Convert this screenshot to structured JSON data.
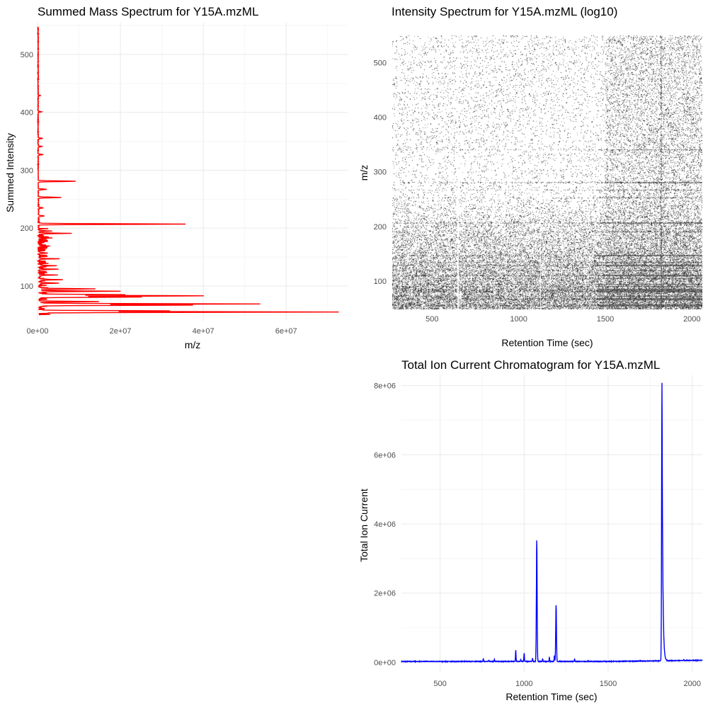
{
  "chart_data": [
    {
      "type": "line",
      "title": "Summed Mass Spectrum for  Y15A.mzML",
      "xlabel": "m/z",
      "ylabel": "Summed Intensity",
      "xlim": [
        0,
        75000000
      ],
      "ylim": [
        40,
        555
      ],
      "x_ticks": [
        0,
        20000000,
        40000000,
        60000000
      ],
      "x_tick_labels": [
        "0e+00",
        "2e+07",
        "4e+07",
        "6e+07"
      ],
      "y_ticks": [
        100,
        200,
        300,
        400,
        500
      ],
      "y_tick_labels": [
        "100",
        "200",
        "300",
        "400",
        "500"
      ],
      "color": "#ff0000",
      "orientation": "horizontal-spectrum",
      "peaks": [
        {
          "mz": 55,
          "value": 71500000
        },
        {
          "mz": 57,
          "value": 29000000
        },
        {
          "mz": 67,
          "value": 36000000
        },
        {
          "mz": 69,
          "value": 52000000
        },
        {
          "mz": 73,
          "value": 13000000
        },
        {
          "mz": 81,
          "value": 23000000
        },
        {
          "mz": 83,
          "value": 38500000
        },
        {
          "mz": 85,
          "value": 19000000
        },
        {
          "mz": 91,
          "value": 17500000
        },
        {
          "mz": 95,
          "value": 12500000
        },
        {
          "mz": 105,
          "value": 4000000
        },
        {
          "mz": 111,
          "value": 4500000
        },
        {
          "mz": 119,
          "value": 2500000
        },
        {
          "mz": 129,
          "value": 3000000
        },
        {
          "mz": 135,
          "value": 3500000
        },
        {
          "mz": 147,
          "value": 2500000
        },
        {
          "mz": 157,
          "value": 2000000
        },
        {
          "mz": 169,
          "value": 1500000
        },
        {
          "mz": 183,
          "value": 2000000
        },
        {
          "mz": 191,
          "value": 6000000
        },
        {
          "mz": 195,
          "value": 3000000
        },
        {
          "mz": 207,
          "value": 35500000
        },
        {
          "mz": 221,
          "value": 1500000
        },
        {
          "mz": 235,
          "value": 1200000
        },
        {
          "mz": 253,
          "value": 5500000
        },
        {
          "mz": 267,
          "value": 2000000
        },
        {
          "mz": 281,
          "value": 9000000
        },
        {
          "mz": 327,
          "value": 1200000
        },
        {
          "mz": 341,
          "value": 1000000
        },
        {
          "mz": 355,
          "value": 1200000
        },
        {
          "mz": 401,
          "value": 900000
        },
        {
          "mz": 429,
          "value": 500000
        }
      ]
    },
    {
      "type": "heatmap",
      "title": "Intensity Spectrum for  Y15A.mzML (log10)",
      "xlabel": "Retention Time (sec)",
      "ylabel": "m/z",
      "xlim": [
        270,
        2060
      ],
      "ylim": [
        48,
        550
      ],
      "x_ticks": [
        500,
        1000,
        1500,
        2000
      ],
      "x_tick_labels": [
        "500",
        "1000",
        "1500",
        "2000"
      ],
      "y_ticks": [
        100,
        200,
        300,
        400,
        500
      ],
      "y_tick_labels": [
        "100",
        "200",
        "300",
        "400",
        "500"
      ],
      "color_low": "#ffffff",
      "color_high": "#000000",
      "blank_scan_rt": [
        648,
        1125
      ],
      "dense_scan_rt": [
        1820
      ],
      "dense_mz_bands": [
        55,
        57,
        67,
        69,
        73,
        81,
        83,
        85,
        91,
        95,
        105,
        111,
        119,
        129,
        135,
        147,
        191,
        207,
        253,
        267,
        281,
        341
      ]
    },
    {
      "type": "line",
      "title": "Total Ion Current Chromatogram for  Y15A.mzML",
      "xlabel": "Retention Time (sec)",
      "ylabel": "Total Ion Current",
      "xlim": [
        270,
        2060
      ],
      "ylim": [
        -300000,
        8300000
      ],
      "x_ticks": [
        500,
        1000,
        1500,
        2000
      ],
      "x_tick_labels": [
        "500",
        "1000",
        "1500",
        "2000"
      ],
      "y_ticks": [
        0,
        2000000,
        4000000,
        6000000,
        8000000
      ],
      "y_tick_labels": [
        "0e+00",
        "2e+06",
        "4e+06",
        "6e+06",
        "8e+06"
      ],
      "color": "#0000ff",
      "baseline": 15000,
      "peaks": [
        {
          "rt": 757,
          "value": 80000
        },
        {
          "rt": 790,
          "value": 30000
        },
        {
          "rt": 823,
          "value": 60000
        },
        {
          "rt": 950,
          "value": 320000
        },
        {
          "rt": 980,
          "value": 50000
        },
        {
          "rt": 1000,
          "value": 240000
        },
        {
          "rt": 1050,
          "value": 100000
        },
        {
          "rt": 1075,
          "value": 3500000
        },
        {
          "rt": 1110,
          "value": 80000
        },
        {
          "rt": 1150,
          "value": 110000
        },
        {
          "rt": 1180,
          "value": 170000
        },
        {
          "rt": 1190,
          "value": 1630000
        },
        {
          "rt": 1300,
          "value": 70000
        },
        {
          "rt": 1380,
          "value": 30000
        },
        {
          "rt": 1480,
          "value": 25000
        },
        {
          "rt": 1820,
          "value": 8030000
        },
        {
          "rt": 1950,
          "value": 20000
        }
      ]
    }
  ]
}
